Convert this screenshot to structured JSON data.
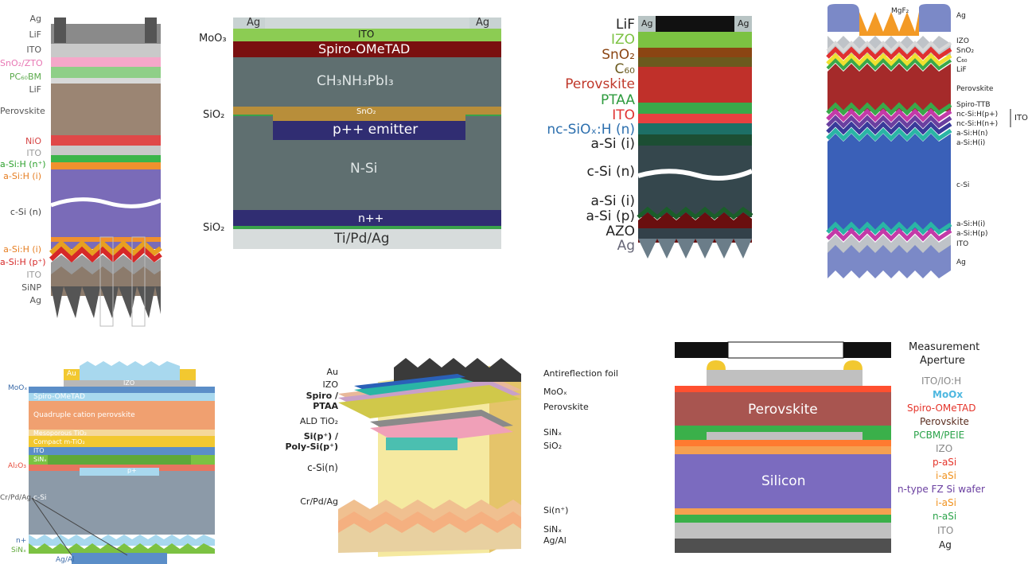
{
  "panel1": {
    "labels": [
      "Ag",
      "LiF",
      "ITO",
      "SnO₂/ZTO",
      "PC₆₀BM",
      "LiF",
      "Perovskite",
      "NiO",
      "ITO",
      "a-Si:H (n⁺)",
      "a-Si:H (i)",
      "c-Si (n)",
      "a-Si:H (i)",
      "a-Si:H (p⁺)",
      "ITO",
      "SiNP",
      "Ag"
    ],
    "label_colors": [
      "#555555",
      "#555555",
      "#555555",
      "#e877b4",
      "#5aa94a",
      "#555555",
      "#555555",
      "#d64545",
      "#9a9a9a",
      "#2ca02c",
      "#e67e22",
      "#444444",
      "#e67e22",
      "#d62828",
      "#9a9a9a",
      "#555555",
      "#555555"
    ]
  },
  "panel2": {
    "top_left": "Ag",
    "top_right": "Ag",
    "ito": "ITO",
    "spiro": "Spiro-OMeTAD",
    "perovskite": "CH₃NH₃PbI₃",
    "sno2": "SnO₂",
    "emitter": "p++ emitter",
    "nsi": "N-Si",
    "npp": "n++",
    "contact": "Ti/Pd/Ag",
    "moo3": "MoO₃",
    "sio2_top": "SiO₂",
    "sio2_bottom": "SiO₂"
  },
  "panel3": {
    "top_left": "Ag",
    "top_right": "Ag",
    "labels": [
      "LiF",
      "IZO",
      "SnO₂",
      "C₆₀",
      "Perovskite",
      "PTAA",
      "ITO",
      "nc-SiOₓ:H (n)",
      "a-Si (i)",
      "c-Si (n)",
      "a-Si (i)",
      "a-Si (p)",
      "AZO",
      "Ag"
    ],
    "label_colors": [
      "#222222",
      "#7cc242",
      "#8b4513",
      "#6b5a1e",
      "#c0392b",
      "#2e9b3e",
      "#e03030",
      "#2c6fae",
      "#222222",
      "#222222",
      "#222222",
      "#222222",
      "#222222",
      "#666677"
    ]
  },
  "panel4": {
    "mgf2": "MgF₂",
    "labels": [
      "Ag",
      "IZO",
      "SnO₂",
      "C₆₀",
      "LiF",
      "Perovskite",
      "Spiro-TTB",
      "nc-Si:H(p+)",
      "nc-Si:H(n+)",
      "a-Si:H(n)",
      "a-Si:H(i)",
      "c-Si",
      "a-Si:H(i)",
      "a-Si:H(p)",
      "ITO",
      "Ag"
    ],
    "ito_bracket": "ITO"
  },
  "panel5": {
    "au": "Au",
    "izo": "IZO",
    "moox": "MoOₓ",
    "spiro": "Spiro-OMeTAD",
    "perov": "Quadruple cation perovskite",
    "meso": "Mesoporous TiO₂",
    "compact": "Compact m-TiO₂",
    "ito": "ITO",
    "sinx": "SiNₓ",
    "al2o3": "Al₂O₃",
    "pp": "p+",
    "crpdag": "Cr/Pd/Ag",
    "csi": "c-Si",
    "np": "n+",
    "sinx2": "SiNₓ",
    "agal": "Ag/Al"
  },
  "panel6": {
    "left": [
      "Au",
      "IZO",
      "Spiro /",
      "PTAA",
      "ALD TiO₂",
      "Si(p⁺) /",
      "Poly-Si(p⁺)",
      "c-Si(n)",
      "Cr/Pd/Ag"
    ],
    "right": [
      "Antireflection foil",
      "MoOₓ",
      "Perovskite",
      "SiNₓ",
      "SiO₂",
      "Si(n⁺)",
      "SiNₓ",
      "Ag/Al"
    ]
  },
  "panel7": {
    "perovskite": "Perovskite",
    "silicon": "Silicon",
    "legend": [
      "Measurement",
      "Aperture",
      "ITO/IO:H",
      "MoOx",
      "Spiro-OMeTAD",
      "Perovskite",
      "PCBM/PEIE",
      "IZO",
      "p-aSi",
      "i-aSi",
      "n-type FZ Si wafer",
      "i-aSi",
      "n-aSi",
      "ITO",
      "Ag"
    ],
    "legend_colors": [
      "#222222",
      "#222222",
      "#888888",
      "#4fb8e0",
      "#e5342a",
      "#5a2d1f",
      "#2ba34a",
      "#888888",
      "#e5342a",
      "#f0921e",
      "#6a3fa0",
      "#f0921e",
      "#2ba34a",
      "#888888",
      "#222222"
    ]
  }
}
